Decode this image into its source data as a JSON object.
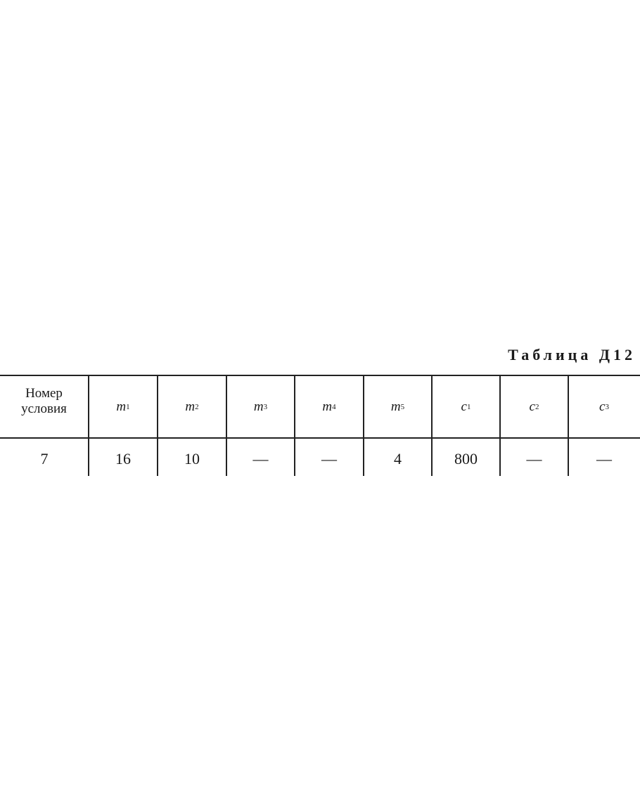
{
  "title": "Таблица Д12",
  "table": {
    "header_first": [
      "Номер",
      "условия"
    ],
    "columns": [
      {
        "sym": "m",
        "sub": "1"
      },
      {
        "sym": "m",
        "sub": "2"
      },
      {
        "sym": "m",
        "sub": "3"
      },
      {
        "sym": "m",
        "sub": "4"
      },
      {
        "sym": "m",
        "sub": "5"
      },
      {
        "sym": "c",
        "sub": "1"
      },
      {
        "sym": "c",
        "sub": "2"
      },
      {
        "sym": "c",
        "sub": "3"
      }
    ],
    "rows": [
      [
        "7",
        "16",
        "10",
        "—",
        "—",
        "4",
        "800",
        "—",
        "—"
      ]
    ]
  }
}
